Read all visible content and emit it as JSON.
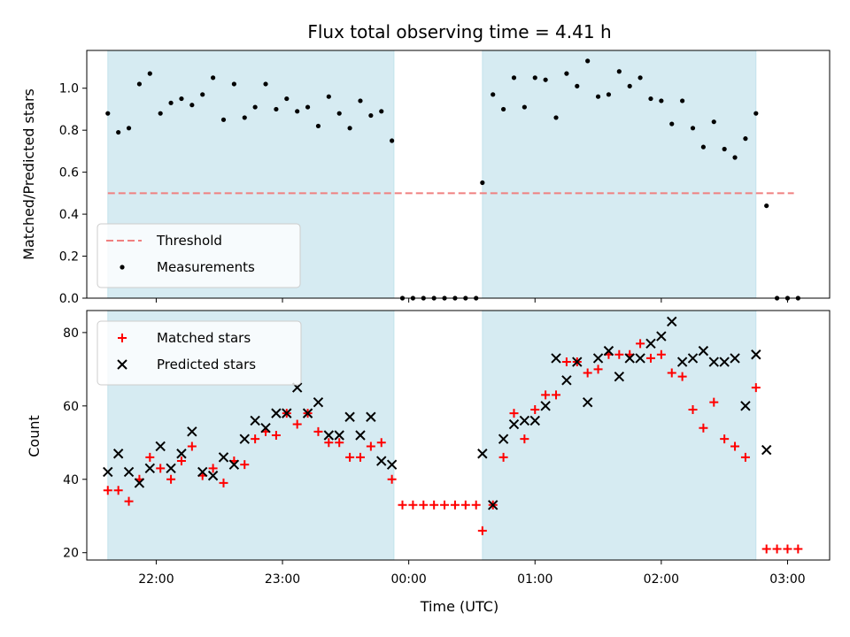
{
  "chart_data": [
    {
      "type": "scatter",
      "title": "Flux total observing time = 4.41 h",
      "ylabel": "Matched/Predicted stars",
      "xlabel": "",
      "x_unit": "hours",
      "xlim": [
        "21:27",
        "03:20"
      ],
      "ylim": [
        0,
        1.18
      ],
      "yticks": [
        0.0,
        0.2,
        0.4,
        0.6,
        0.8,
        1.0
      ],
      "shaded_intervals": [
        [
          "21:37",
          "23:53"
        ],
        [
          "00:35",
          "02:45"
        ]
      ],
      "legend_position": "lower-left",
      "threshold": {
        "name": "Threshold",
        "value": 0.5,
        "x_range": [
          "21:37",
          "03:03"
        ],
        "color": "#f08080"
      },
      "series": [
        {
          "name": "Measurements",
          "color": "#000000",
          "points": [
            [
              "21:37",
              0.88
            ],
            [
              "21:42",
              0.79
            ],
            [
              "21:47",
              0.81
            ],
            [
              "21:52",
              1.02
            ],
            [
              "21:57",
              1.07
            ],
            [
              "22:02",
              0.88
            ],
            [
              "22:07",
              0.93
            ],
            [
              "22:12",
              0.95
            ],
            [
              "22:17",
              0.92
            ],
            [
              "22:22",
              0.97
            ],
            [
              "22:27",
              1.05
            ],
            [
              "22:32",
              0.85
            ],
            [
              "22:37",
              1.02
            ],
            [
              "22:42",
              0.86
            ],
            [
              "22:47",
              0.91
            ],
            [
              "22:52",
              1.02
            ],
            [
              "22:57",
              0.9
            ],
            [
              "23:02",
              0.95
            ],
            [
              "23:07",
              0.89
            ],
            [
              "23:12",
              0.91
            ],
            [
              "23:17",
              0.82
            ],
            [
              "23:22",
              0.96
            ],
            [
              "23:27",
              0.88
            ],
            [
              "23:32",
              0.81
            ],
            [
              "23:37",
              0.94
            ],
            [
              "23:42",
              0.87
            ],
            [
              "23:47",
              0.89
            ],
            [
              "23:52",
              0.75
            ],
            [
              "23:57",
              0.0
            ],
            [
              "00:02",
              0.0
            ],
            [
              "00:07",
              0.0
            ],
            [
              "00:12",
              0.0
            ],
            [
              "00:17",
              0.0
            ],
            [
              "00:22",
              0.0
            ],
            [
              "00:27",
              0.0
            ],
            [
              "00:32",
              0.0
            ],
            [
              "00:35",
              0.55
            ],
            [
              "00:40",
              0.97
            ],
            [
              "00:45",
              0.9
            ],
            [
              "00:50",
              1.05
            ],
            [
              "00:55",
              0.91
            ],
            [
              "01:00",
              1.05
            ],
            [
              "01:05",
              1.04
            ],
            [
              "01:10",
              0.86
            ],
            [
              "01:15",
              1.07
            ],
            [
              "01:20",
              1.01
            ],
            [
              "01:25",
              1.13
            ],
            [
              "01:30",
              0.96
            ],
            [
              "01:35",
              0.97
            ],
            [
              "01:40",
              1.08
            ],
            [
              "01:45",
              1.01
            ],
            [
              "01:50",
              1.05
            ],
            [
              "01:55",
              0.95
            ],
            [
              "02:00",
              0.94
            ],
            [
              "02:05",
              0.83
            ],
            [
              "02:10",
              0.94
            ],
            [
              "02:15",
              0.81
            ],
            [
              "02:20",
              0.72
            ],
            [
              "02:25",
              0.84
            ],
            [
              "02:30",
              0.71
            ],
            [
              "02:35",
              0.67
            ],
            [
              "02:40",
              0.76
            ],
            [
              "02:45",
              0.88
            ],
            [
              "02:50",
              0.44
            ],
            [
              "02:55",
              0.0
            ],
            [
              "03:00",
              0.0
            ],
            [
              "03:05",
              0.0
            ]
          ]
        }
      ]
    },
    {
      "type": "scatter",
      "title": "",
      "ylabel": "Count",
      "xlabel": "Time (UTC)",
      "x_unit": "hours",
      "xlim": [
        "21:27",
        "03:20"
      ],
      "ylim": [
        18,
        86
      ],
      "yticks": [
        20,
        40,
        60,
        80
      ],
      "xticks": [
        "22:00",
        "23:00",
        "00:00",
        "01:00",
        "02:00",
        "03:00"
      ],
      "shaded_intervals": [
        [
          "21:37",
          "23:53"
        ],
        [
          "00:35",
          "02:45"
        ]
      ],
      "legend_position": "upper-left",
      "series": [
        {
          "name": "Matched stars",
          "marker": "plus",
          "color": "#ff0000",
          "points": [
            [
              "21:37",
              37
            ],
            [
              "21:42",
              37
            ],
            [
              "21:47",
              34
            ],
            [
              "21:52",
              40
            ],
            [
              "21:57",
              46
            ],
            [
              "22:02",
              43
            ],
            [
              "22:07",
              40
            ],
            [
              "22:12",
              45
            ],
            [
              "22:17",
              49
            ],
            [
              "22:22",
              41
            ],
            [
              "22:27",
              43
            ],
            [
              "22:32",
              39
            ],
            [
              "22:37",
              45
            ],
            [
              "22:42",
              44
            ],
            [
              "22:47",
              51
            ],
            [
              "22:52",
              53
            ],
            [
              "22:57",
              52
            ],
            [
              "23:02",
              58
            ],
            [
              "23:07",
              55
            ],
            [
              "23:12",
              58
            ],
            [
              "23:17",
              53
            ],
            [
              "23:22",
              50
            ],
            [
              "23:27",
              50
            ],
            [
              "23:32",
              46
            ],
            [
              "23:37",
              46
            ],
            [
              "23:42",
              49
            ],
            [
              "23:47",
              50
            ],
            [
              "23:52",
              40
            ],
            [
              "23:57",
              33
            ],
            [
              "00:02",
              33
            ],
            [
              "00:07",
              33
            ],
            [
              "00:12",
              33
            ],
            [
              "00:17",
              33
            ],
            [
              "00:22",
              33
            ],
            [
              "00:27",
              33
            ],
            [
              "00:32",
              33
            ],
            [
              "00:35",
              26
            ],
            [
              "00:40",
              33
            ],
            [
              "00:45",
              46
            ],
            [
              "00:50",
              58
            ],
            [
              "00:55",
              51
            ],
            [
              "01:00",
              59
            ],
            [
              "01:05",
              63
            ],
            [
              "01:10",
              63
            ],
            [
              "01:15",
              72
            ],
            [
              "01:20",
              72
            ],
            [
              "01:25",
              69
            ],
            [
              "01:30",
              70
            ],
            [
              "01:35",
              74
            ],
            [
              "01:40",
              74
            ],
            [
              "01:45",
              74
            ],
            [
              "01:50",
              77
            ],
            [
              "01:55",
              73
            ],
            [
              "02:00",
              74
            ],
            [
              "02:05",
              69
            ],
            [
              "02:10",
              68
            ],
            [
              "02:15",
              59
            ],
            [
              "02:20",
              54
            ],
            [
              "02:25",
              61
            ],
            [
              "02:30",
              51
            ],
            [
              "02:35",
              49
            ],
            [
              "02:40",
              46
            ],
            [
              "02:45",
              65
            ],
            [
              "02:50",
              21
            ],
            [
              "02:55",
              21
            ],
            [
              "03:00",
              21
            ],
            [
              "03:05",
              21
            ]
          ]
        },
        {
          "name": "Predicted stars",
          "marker": "x",
          "color": "#000000",
          "points": [
            [
              "21:37",
              42
            ],
            [
              "21:42",
              47
            ],
            [
              "21:47",
              42
            ],
            [
              "21:52",
              39
            ],
            [
              "21:57",
              43
            ],
            [
              "22:02",
              49
            ],
            [
              "22:07",
              43
            ],
            [
              "22:12",
              47
            ],
            [
              "22:17",
              53
            ],
            [
              "22:22",
              42
            ],
            [
              "22:27",
              41
            ],
            [
              "22:32",
              46
            ],
            [
              "22:37",
              44
            ],
            [
              "22:42",
              51
            ],
            [
              "22:47",
              56
            ],
            [
              "22:52",
              54
            ],
            [
              "22:57",
              58
            ],
            [
              "23:02",
              58
            ],
            [
              "23:07",
              65
            ],
            [
              "23:12",
              58
            ],
            [
              "23:17",
              61
            ],
            [
              "23:22",
              52
            ],
            [
              "23:27",
              52
            ],
            [
              "23:32",
              57
            ],
            [
              "23:37",
              52
            ],
            [
              "23:42",
              57
            ],
            [
              "23:47",
              45
            ],
            [
              "23:52",
              44
            ],
            [
              "00:35",
              47
            ],
            [
              "00:40",
              33
            ],
            [
              "00:45",
              51
            ],
            [
              "00:50",
              55
            ],
            [
              "00:55",
              56
            ],
            [
              "01:00",
              56
            ],
            [
              "01:05",
              60
            ],
            [
              "01:10",
              73
            ],
            [
              "01:15",
              67
            ],
            [
              "01:20",
              72
            ],
            [
              "01:25",
              61
            ],
            [
              "01:30",
              73
            ],
            [
              "01:35",
              75
            ],
            [
              "01:40",
              68
            ],
            [
              "01:45",
              73
            ],
            [
              "01:50",
              73
            ],
            [
              "01:55",
              77
            ],
            [
              "02:00",
              79
            ],
            [
              "02:05",
              83
            ],
            [
              "02:10",
              72
            ],
            [
              "02:15",
              73
            ],
            [
              "02:20",
              75
            ],
            [
              "02:25",
              72
            ],
            [
              "02:30",
              72
            ],
            [
              "02:35",
              73
            ],
            [
              "02:40",
              60
            ],
            [
              "02:45",
              74
            ],
            [
              "02:50",
              48
            ]
          ]
        }
      ]
    }
  ]
}
